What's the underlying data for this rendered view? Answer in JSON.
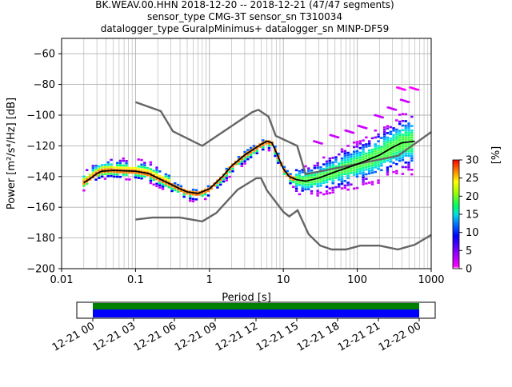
{
  "title_lines": [
    "BK.WEAV.00.HHN   2018-12-20 -- 2018-12-21  (47/47 segments)",
    "sensor_type CMG-3T sensor_sn T310034",
    "datalogger_type GuralpMinimus+ datalogger_sn MINP-DF59"
  ],
  "colors": {
    "noise_models": "#666666",
    "mean_curve": "#000000",
    "grid": "#b0b0b0",
    "coverage_data": "#0000ff",
    "coverage_gaps": "#008000"
  },
  "chart_data": [
    {
      "type": "heatmap",
      "name": "ppsd",
      "xlabel": "Period [s]",
      "ylabel": "Power [m²/s⁴/Hz] [dB]",
      "xscale": "log",
      "xlim": [
        0.01,
        1000
      ],
      "ylim": [
        -200,
        -50
      ],
      "xticks": [
        {
          "value": 0.01,
          "label": "0.01"
        },
        {
          "value": 0.1,
          "label": "0.1"
        },
        {
          "value": 1,
          "label": "1"
        },
        {
          "value": 10,
          "label": "10"
        },
        {
          "value": 100,
          "label": "100"
        },
        {
          "value": 1000,
          "label": "1000"
        }
      ],
      "yticks": [
        -60,
        -80,
        -100,
        -120,
        -140,
        -160,
        -180,
        -200
      ],
      "grid": true,
      "noise_model_high": [
        [
          0.1,
          -91.5
        ],
        [
          0.22,
          -97.4
        ],
        [
          0.32,
          -110.5
        ],
        [
          0.8,
          -120
        ],
        [
          3.8,
          -98
        ],
        [
          4.6,
          -96.5
        ],
        [
          6.3,
          -101
        ],
        [
          7.9,
          -113.5
        ],
        [
          15.4,
          -120
        ],
        [
          20,
          -138.5
        ],
        [
          354.8,
          -126.5
        ],
        [
          1000,
          -111
        ]
      ],
      "noise_model_low": [
        [
          0.1,
          -168
        ],
        [
          0.17,
          -166.7
        ],
        [
          0.4,
          -166.7
        ],
        [
          0.8,
          -169.2
        ],
        [
          1.24,
          -163.7
        ],
        [
          2.4,
          -148.6
        ],
        [
          4.3,
          -141.1
        ],
        [
          5,
          -141.1
        ],
        [
          6,
          -149
        ],
        [
          10,
          -163
        ],
        [
          12,
          -166
        ],
        [
          15.6,
          -162
        ],
        [
          21.9,
          -177.5
        ],
        [
          31.6,
          -185
        ],
        [
          45,
          -187.5
        ],
        [
          70,
          -187.5
        ],
        [
          110,
          -185
        ],
        [
          200,
          -185
        ],
        [
          354.8,
          -187.5
        ],
        [
          600,
          -184.4
        ],
        [
          1000,
          -178
        ]
      ],
      "mean_curve": [
        [
          0.02,
          -144
        ],
        [
          0.025,
          -141
        ],
        [
          0.03,
          -138
        ],
        [
          0.035,
          -136.5
        ],
        [
          0.05,
          -136
        ],
        [
          0.1,
          -136.5
        ],
        [
          0.15,
          -138
        ],
        [
          0.2,
          -141
        ],
        [
          0.3,
          -145
        ],
        [
          0.4,
          -148
        ],
        [
          0.5,
          -150
        ],
        [
          0.7,
          -151
        ],
        [
          1,
          -148
        ],
        [
          1.5,
          -140
        ],
        [
          2,
          -133
        ],
        [
          3,
          -126
        ],
        [
          4,
          -122
        ],
        [
          5,
          -119
        ],
        [
          6,
          -117
        ],
        [
          7,
          -118
        ],
        [
          8,
          -124
        ],
        [
          10,
          -135
        ],
        [
          12,
          -140
        ],
        [
          15,
          -142
        ],
        [
          20,
          -143
        ],
        [
          30,
          -141
        ],
        [
          50,
          -137
        ],
        [
          100,
          -132
        ],
        [
          200,
          -126
        ],
        [
          300,
          -121
        ],
        [
          400,
          -118
        ],
        [
          600,
          -117
        ]
      ],
      "colorbar": {
        "label": "[%]",
        "ticks": [
          0,
          5,
          10,
          15,
          20,
          25,
          30
        ],
        "range": [
          0,
          30
        ]
      }
    },
    {
      "type": "timeline",
      "name": "data-coverage",
      "xticks": [
        "12-21 00",
        "12-21 03",
        "12-21 06",
        "12-21 09",
        "12-21 12",
        "12-21 15",
        "12-21 18",
        "12-21 21",
        "12-22 00"
      ]
    }
  ]
}
